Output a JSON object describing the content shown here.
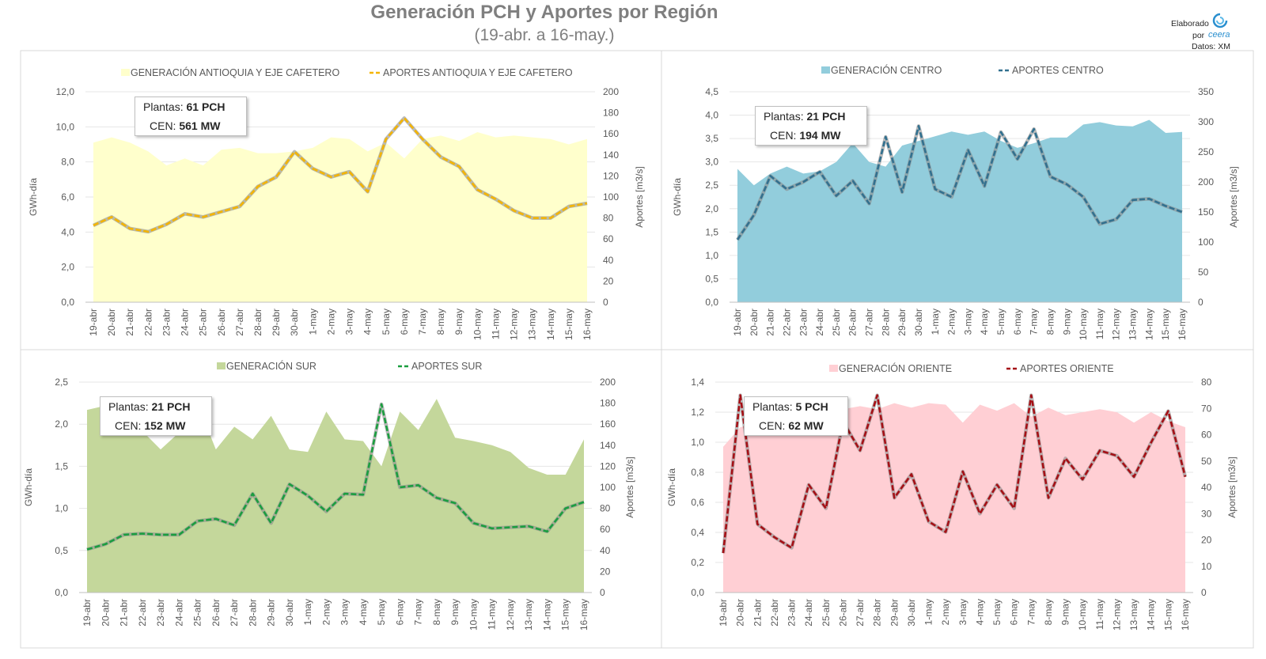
{
  "title": "Generación PCH y Aportes por Región",
  "subtitle": "(19-abr. a 16-may.)",
  "credit": {
    "line1": "Elaborado",
    "line2": "por",
    "brand": "ceera",
    "line3": "Datos: XM"
  },
  "colors": {
    "title": "#7f7f7f",
    "axis_text": "#595959",
    "gridline": "#e6e6e6"
  },
  "chart_data": [
    {
      "type": "area+line",
      "region": "antioquia",
      "categories": [
        "19-abr",
        "20-abr",
        "21-abr",
        "22-abr",
        "23-abr",
        "24-abr",
        "25-abr",
        "26-abr",
        "27-abr",
        "28-abr",
        "29-abr",
        "30-abr",
        "1-may",
        "2-may",
        "3-may",
        "4-may",
        "5-may",
        "6-may",
        "7-may",
        "8-may",
        "9-may",
        "10-may",
        "11-may",
        "12-may",
        "13-may",
        "14-may",
        "15-may",
        "16-may"
      ],
      "ylabel": "GWh-día",
      "y2label": "Aportes [m3/s]",
      "ylim": [
        0,
        12
      ],
      "y_ticks": [
        "0,0",
        "2,0",
        "4,0",
        "6,0",
        "8,0",
        "10,0",
        "12,0"
      ],
      "y2lim": [
        0,
        200
      ],
      "y2_ticks": [
        "0",
        "20",
        "40",
        "60",
        "80",
        "100",
        "120",
        "140",
        "160",
        "180",
        "200"
      ],
      "area_series": {
        "name": "GENERACIÓN ANTIOQUIA Y EJE CAFETERO",
        "color": "#ffffcc",
        "values": [
          9.1,
          9.4,
          9.1,
          8.6,
          7.8,
          8.2,
          7.8,
          8.7,
          8.8,
          8.5,
          8.5,
          8.6,
          8.8,
          9.4,
          9.3,
          8.6,
          9.1,
          8.2,
          9.3,
          9.5,
          9.2,
          9.7,
          9.4,
          9.5,
          9.4,
          9.3,
          9.0,
          9.3
        ]
      },
      "line_series": {
        "name": "APORTES ANTIOQUIA Y EJE CAFETERO",
        "color": "#f4b400",
        "outline": "#8c8c8c",
        "values": [
          73,
          81,
          70,
          67,
          74,
          84,
          81,
          86,
          91,
          110,
          119,
          143,
          127,
          119,
          124,
          105,
          155,
          175,
          155,
          138,
          129,
          107,
          98,
          87,
          80,
          80,
          91,
          94
        ]
      },
      "info": {
        "plantas_label": "Plantas:",
        "plantas_value": "61 PCH",
        "cen_label": "CEN:",
        "cen_value": "561 MW"
      }
    },
    {
      "type": "area+line",
      "region": "centro",
      "categories": [
        "19-abr",
        "20-abr",
        "21-abr",
        "22-abr",
        "23-abr",
        "24-abr",
        "25-abr",
        "26-abr",
        "27-abr",
        "28-abr",
        "29-abr",
        "30-abr",
        "1-may",
        "2-may",
        "3-may",
        "4-may",
        "5-may",
        "6-may",
        "7-may",
        "8-may",
        "9-may",
        "10-may",
        "11-may",
        "12-may",
        "13-may",
        "14-may",
        "15-may",
        "16-may"
      ],
      "ylabel": "GWh-día",
      "y2label": "Aportes [m3/s]",
      "ylim": [
        0,
        4.5
      ],
      "y_ticks": [
        "0,0",
        "0,5",
        "1,0",
        "1,5",
        "2,0",
        "2,5",
        "3,0",
        "3,5",
        "4,0",
        "4,5"
      ],
      "y2lim": [
        0,
        350
      ],
      "y2_ticks": [
        "0",
        "50",
        "100",
        "150",
        "200",
        "250",
        "300",
        "350"
      ],
      "area_series": {
        "name": "GENERACIÓN CENTRO",
        "color": "#92cddc",
        "values": [
          2.85,
          2.5,
          2.75,
          2.9,
          2.75,
          2.8,
          3.0,
          3.4,
          3.0,
          2.9,
          3.35,
          3.45,
          3.55,
          3.65,
          3.58,
          3.65,
          3.45,
          3.3,
          3.4,
          3.52,
          3.52,
          3.8,
          3.85,
          3.78,
          3.76,
          3.9,
          3.62,
          3.64
        ]
      },
      "line_series": {
        "name": "APORTES CENTRO",
        "color": "#31708f",
        "outline": "#8c8c8c",
        "values": [
          104,
          145,
          210,
          188,
          200,
          217,
          177,
          202,
          164,
          275,
          183,
          293,
          188,
          175,
          253,
          193,
          283,
          238,
          288,
          209,
          196,
          175,
          130,
          138,
          170,
          172,
          160,
          150
        ]
      },
      "info": {
        "plantas_label": "Plantas:",
        "plantas_value": "21 PCH",
        "cen_label": "CEN:",
        "cen_value": "194 MW"
      }
    },
    {
      "type": "area+line",
      "region": "sur",
      "categories": [
        "19-abr",
        "20-abr",
        "21-abr",
        "22-abr",
        "23-abr",
        "24-abr",
        "25-abr",
        "26-abr",
        "27-abr",
        "28-abr",
        "29-abr",
        "30-abr",
        "1-may",
        "2-may",
        "3-may",
        "4-may",
        "5-may",
        "6-may",
        "7-may",
        "8-may",
        "9-may",
        "10-may",
        "11-may",
        "12-may",
        "13-may",
        "14-may",
        "15-may",
        "16-may"
      ],
      "ylabel": "GWh-día",
      "y2label": "Aportes [m3/s]",
      "ylim": [
        0,
        2.5
      ],
      "y_ticks": [
        "0,0",
        "0,5",
        "1,0",
        "1,5",
        "2,0",
        "2,5"
      ],
      "y2lim": [
        0,
        200
      ],
      "y2_ticks": [
        "0",
        "20",
        "40",
        "60",
        "80",
        "100",
        "120",
        "140",
        "160",
        "180",
        "200"
      ],
      "area_series": {
        "name": "GENERACIÓN SUR",
        "color": "#c4d79b",
        "values": [
          2.17,
          2.22,
          2.1,
          1.92,
          1.7,
          1.9,
          2.25,
          1.7,
          1.97,
          1.82,
          2.1,
          1.7,
          1.67,
          2.15,
          1.82,
          1.8,
          1.5,
          2.15,
          1.93,
          2.3,
          1.84,
          1.8,
          1.75,
          1.67,
          1.48,
          1.4,
          1.4,
          1.82
        ]
      },
      "line_series": {
        "name": "APORTES SUR",
        "color": "#1a9e3f",
        "outline": "#8c8c8c",
        "values": [
          41,
          46,
          55,
          56,
          55,
          55,
          68,
          70,
          64,
          94,
          66,
          103,
          92,
          77,
          94,
          93,
          179,
          100,
          102,
          90,
          85,
          66,
          61,
          62,
          63,
          58,
          80,
          86
        ]
      },
      "info": {
        "plantas_label": "Plantas:",
        "plantas_value": "21 PCH",
        "cen_label": "CEN:",
        "cen_value": "152 MW"
      }
    },
    {
      "type": "area+line",
      "region": "oriente",
      "categories": [
        "19-abr",
        "20-abr",
        "21-abr",
        "22-abr",
        "23-abr",
        "24-abr",
        "25-abr",
        "26-abr",
        "27-abr",
        "28-abr",
        "29-abr",
        "30-abr",
        "1-may",
        "2-may",
        "3-may",
        "4-may",
        "5-may",
        "6-may",
        "7-may",
        "8-may",
        "9-may",
        "10-may",
        "11-may",
        "12-may",
        "13-may",
        "14-may",
        "15-may",
        "16-may"
      ],
      "ylabel": "GWh-día",
      "y2label": "Aportes [m3/s]",
      "ylim": [
        0,
        1.4
      ],
      "y_ticks": [
        "0,0",
        "0,2",
        "0,4",
        "0,6",
        "0,8",
        "1,0",
        "1,2",
        "1,4"
      ],
      "y2lim": [
        0,
        80
      ],
      "y2_ticks": [
        "0",
        "10",
        "20",
        "30",
        "40",
        "50",
        "60",
        "70",
        "80"
      ],
      "area_series": {
        "name": "GENERACIÓN ORIENTE",
        "color": "#ffcfd4",
        "values": [
          0.97,
          1.1,
          1.12,
          1.14,
          1.11,
          1.15,
          1.17,
          1.22,
          1.24,
          1.22,
          1.26,
          1.23,
          1.26,
          1.25,
          1.13,
          1.25,
          1.21,
          1.26,
          1.17,
          1.23,
          1.18,
          1.2,
          1.22,
          1.2,
          1.13,
          1.2,
          1.14,
          1.1
        ]
      },
      "line_series": {
        "name": "APORTES ORIENTE",
        "color": "#a50f15",
        "outline": "#8c8c8c",
        "values": [
          15,
          75,
          26,
          21,
          17,
          41,
          32,
          65,
          54,
          75,
          36,
          45,
          27,
          23,
          46,
          30,
          41,
          32,
          75,
          36,
          51,
          43,
          54,
          52,
          44,
          57,
          69,
          44
        ]
      },
      "info": {
        "plantas_label": "Plantas:",
        "plantas_value": "5 PCH",
        "cen_label": "CEN:",
        "cen_value": "62 MW"
      }
    }
  ]
}
